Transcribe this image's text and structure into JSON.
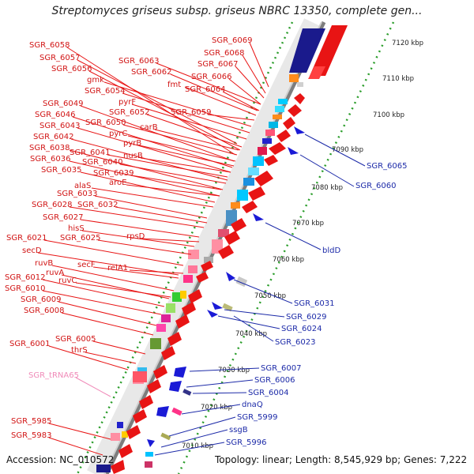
{
  "title": "Streptomyces griseus subsp. griseus NBRC 13350, complete gen...",
  "footer": {
    "accession": "Accession: NC_010572",
    "summary": "Topology: linear; Length: 8,545,929 bp; Genes: 7,222"
  },
  "colors": {
    "forward": "#e81414",
    "reverse": "#1a1ad6",
    "trna": "#f08ab8",
    "backbone": "#888888"
  },
  "kbp_ticks": [
    "7120 kbp",
    "7110 kbp",
    "7100 kbp",
    "7090 kbp",
    "7080 kbp",
    "7070 kbp",
    "7060 kbp",
    "7050 kbp",
    "7040 kbp",
    "7030 kbp",
    "7020 kbp",
    "7010 kbp"
  ],
  "left_labels": [
    "SGR_6069",
    "SGR_6058",
    "SGR_6068",
    "SGR_6057",
    "SGR_6063",
    "SGR_6067",
    "SGR_6056",
    "SGR_6062",
    "SGR_6066",
    "gmk",
    "fmt",
    "SGR_6064",
    "SGR_6054",
    "pyrF",
    "SGR_6049",
    "SGR_6052",
    "SGR_6059",
    "SGR_6046",
    "SGR_6050",
    "SGR_6043",
    "carB",
    "pyrC",
    "SGR_6042",
    "pyrB",
    "SGR_6038",
    "SGR_6041",
    "nusB",
    "SGR_6036",
    "SGR_6040",
    "SGR_6035",
    "SGR_6039",
    "aroE",
    "alaS",
    "SGR_6033",
    "SGR_6028",
    "SGR_6032",
    "SGR_6027",
    "hisS",
    "rpsD",
    "SGR_6021",
    "SGR_6025",
    "secD",
    "secF",
    "relA1",
    "ruvB",
    "ruvA",
    "SGR_6012",
    "ruvC",
    "SGR_6010",
    "SGR_6009",
    "SGR_6008",
    "SGR_6005",
    "SGR_6001",
    "thrS",
    "SGR_tRNA65",
    "SGR_5985",
    "SGR_5983"
  ],
  "right_labels": [
    "SGR_6065",
    "SGR_6060",
    "bldD",
    "SGR_6031",
    "SGR_6029",
    "SGR_6024",
    "SGR_6023",
    "SGR_6007",
    "SGR_6006",
    "SGR_6004",
    "dnaQ",
    "SGR_5999",
    "ssgB",
    "SGR_5996"
  ]
}
